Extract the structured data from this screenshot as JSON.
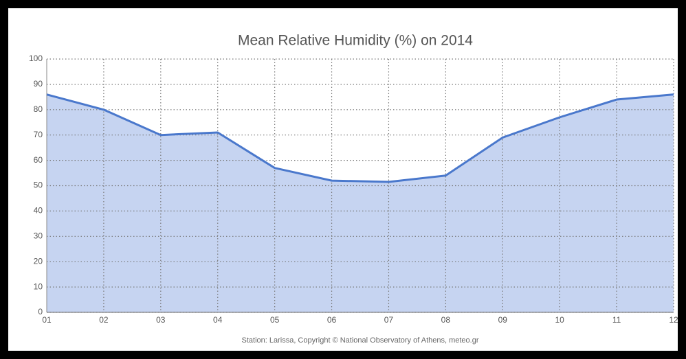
{
  "chart_data": {
    "type": "area",
    "title": "Mean Relative Humidity (%) on 2014",
    "footnote": "Station: Larissa, Copyright © National Observatory of Athens, meteo.gr",
    "categories": [
      "01",
      "02",
      "03",
      "04",
      "05",
      "06",
      "07",
      "08",
      "09",
      "10",
      "11",
      "12"
    ],
    "series": [
      {
        "name": "Mean Relative Humidity",
        "color": "#4a78cc",
        "values": [
          86,
          80,
          70,
          71,
          57,
          52,
          51.5,
          54,
          69,
          77,
          84,
          86
        ]
      }
    ],
    "ylim": [
      0,
      100
    ],
    "yticks": [
      0,
      10,
      20,
      30,
      40,
      50,
      60,
      70,
      80,
      90,
      100
    ],
    "grid": true
  }
}
